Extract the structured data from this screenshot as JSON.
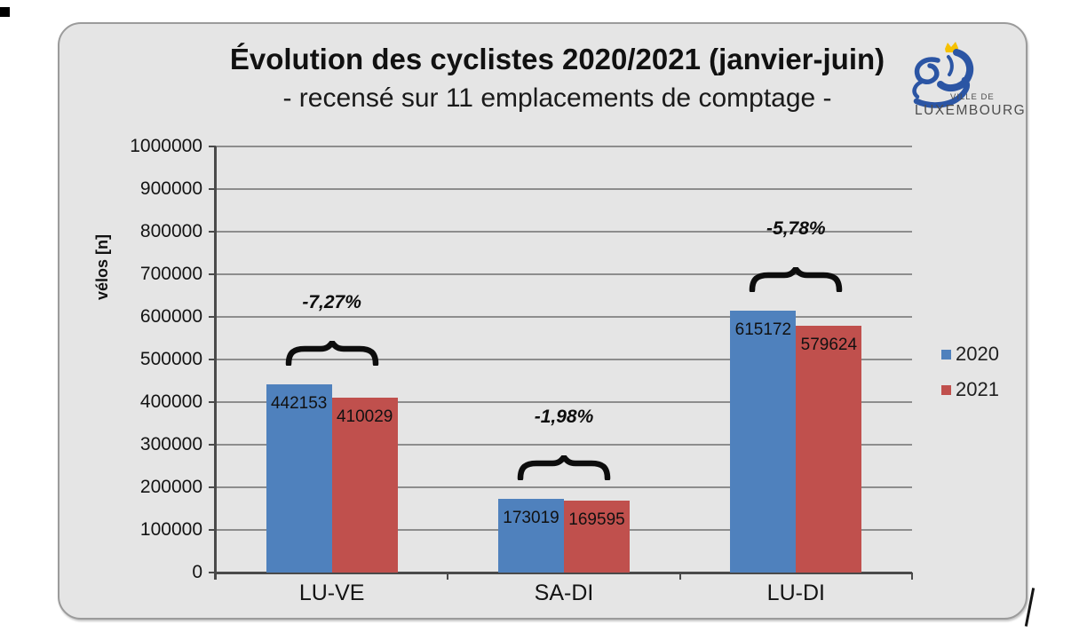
{
  "chart_data": {
    "type": "bar",
    "title": "Évolution des cyclistes 2020/2021 (janvier-juin)",
    "subtitle": "- recensé sur 11 emplacements de comptage -",
    "ylabel": "vélos [n]",
    "ylim": [
      0,
      1000000
    ],
    "yticks": [
      0,
      100000,
      200000,
      300000,
      400000,
      500000,
      600000,
      700000,
      800000,
      900000,
      1000000
    ],
    "grid": true,
    "legend_position": "right",
    "categories": [
      "LU-VE",
      "SA-DI",
      "LU-DI"
    ],
    "series": [
      {
        "name": "2020",
        "color": "#4f81bd",
        "values": [
          442153,
          173019,
          615172
        ]
      },
      {
        "name": "2021",
        "color": "#c0504d",
        "values": [
          410029,
          169595,
          579624
        ]
      }
    ],
    "annotations": [
      {
        "category": "LU-VE",
        "label": "-7,27%"
      },
      {
        "category": "SA-DI",
        "label": "-1,98%"
      },
      {
        "category": "LU-DI",
        "label": "-5,78%"
      }
    ]
  },
  "logo": {
    "line1": "VILLE DE",
    "line2": "LUXEMBOURG",
    "lion_color": "#2b55a4",
    "crown_color": "#f6c100",
    "text_color": "#4d4d4d"
  },
  "marks": {
    "corner": "black-square",
    "slash": "/"
  },
  "colors": {
    "frame_background": "#e5e5e5",
    "frame_border": "#9b9b9b",
    "axis": "#4a4a4a",
    "gridline": "#8d8d8d",
    "series_2020": "#4f81bd",
    "series_2021": "#c0504d"
  }
}
